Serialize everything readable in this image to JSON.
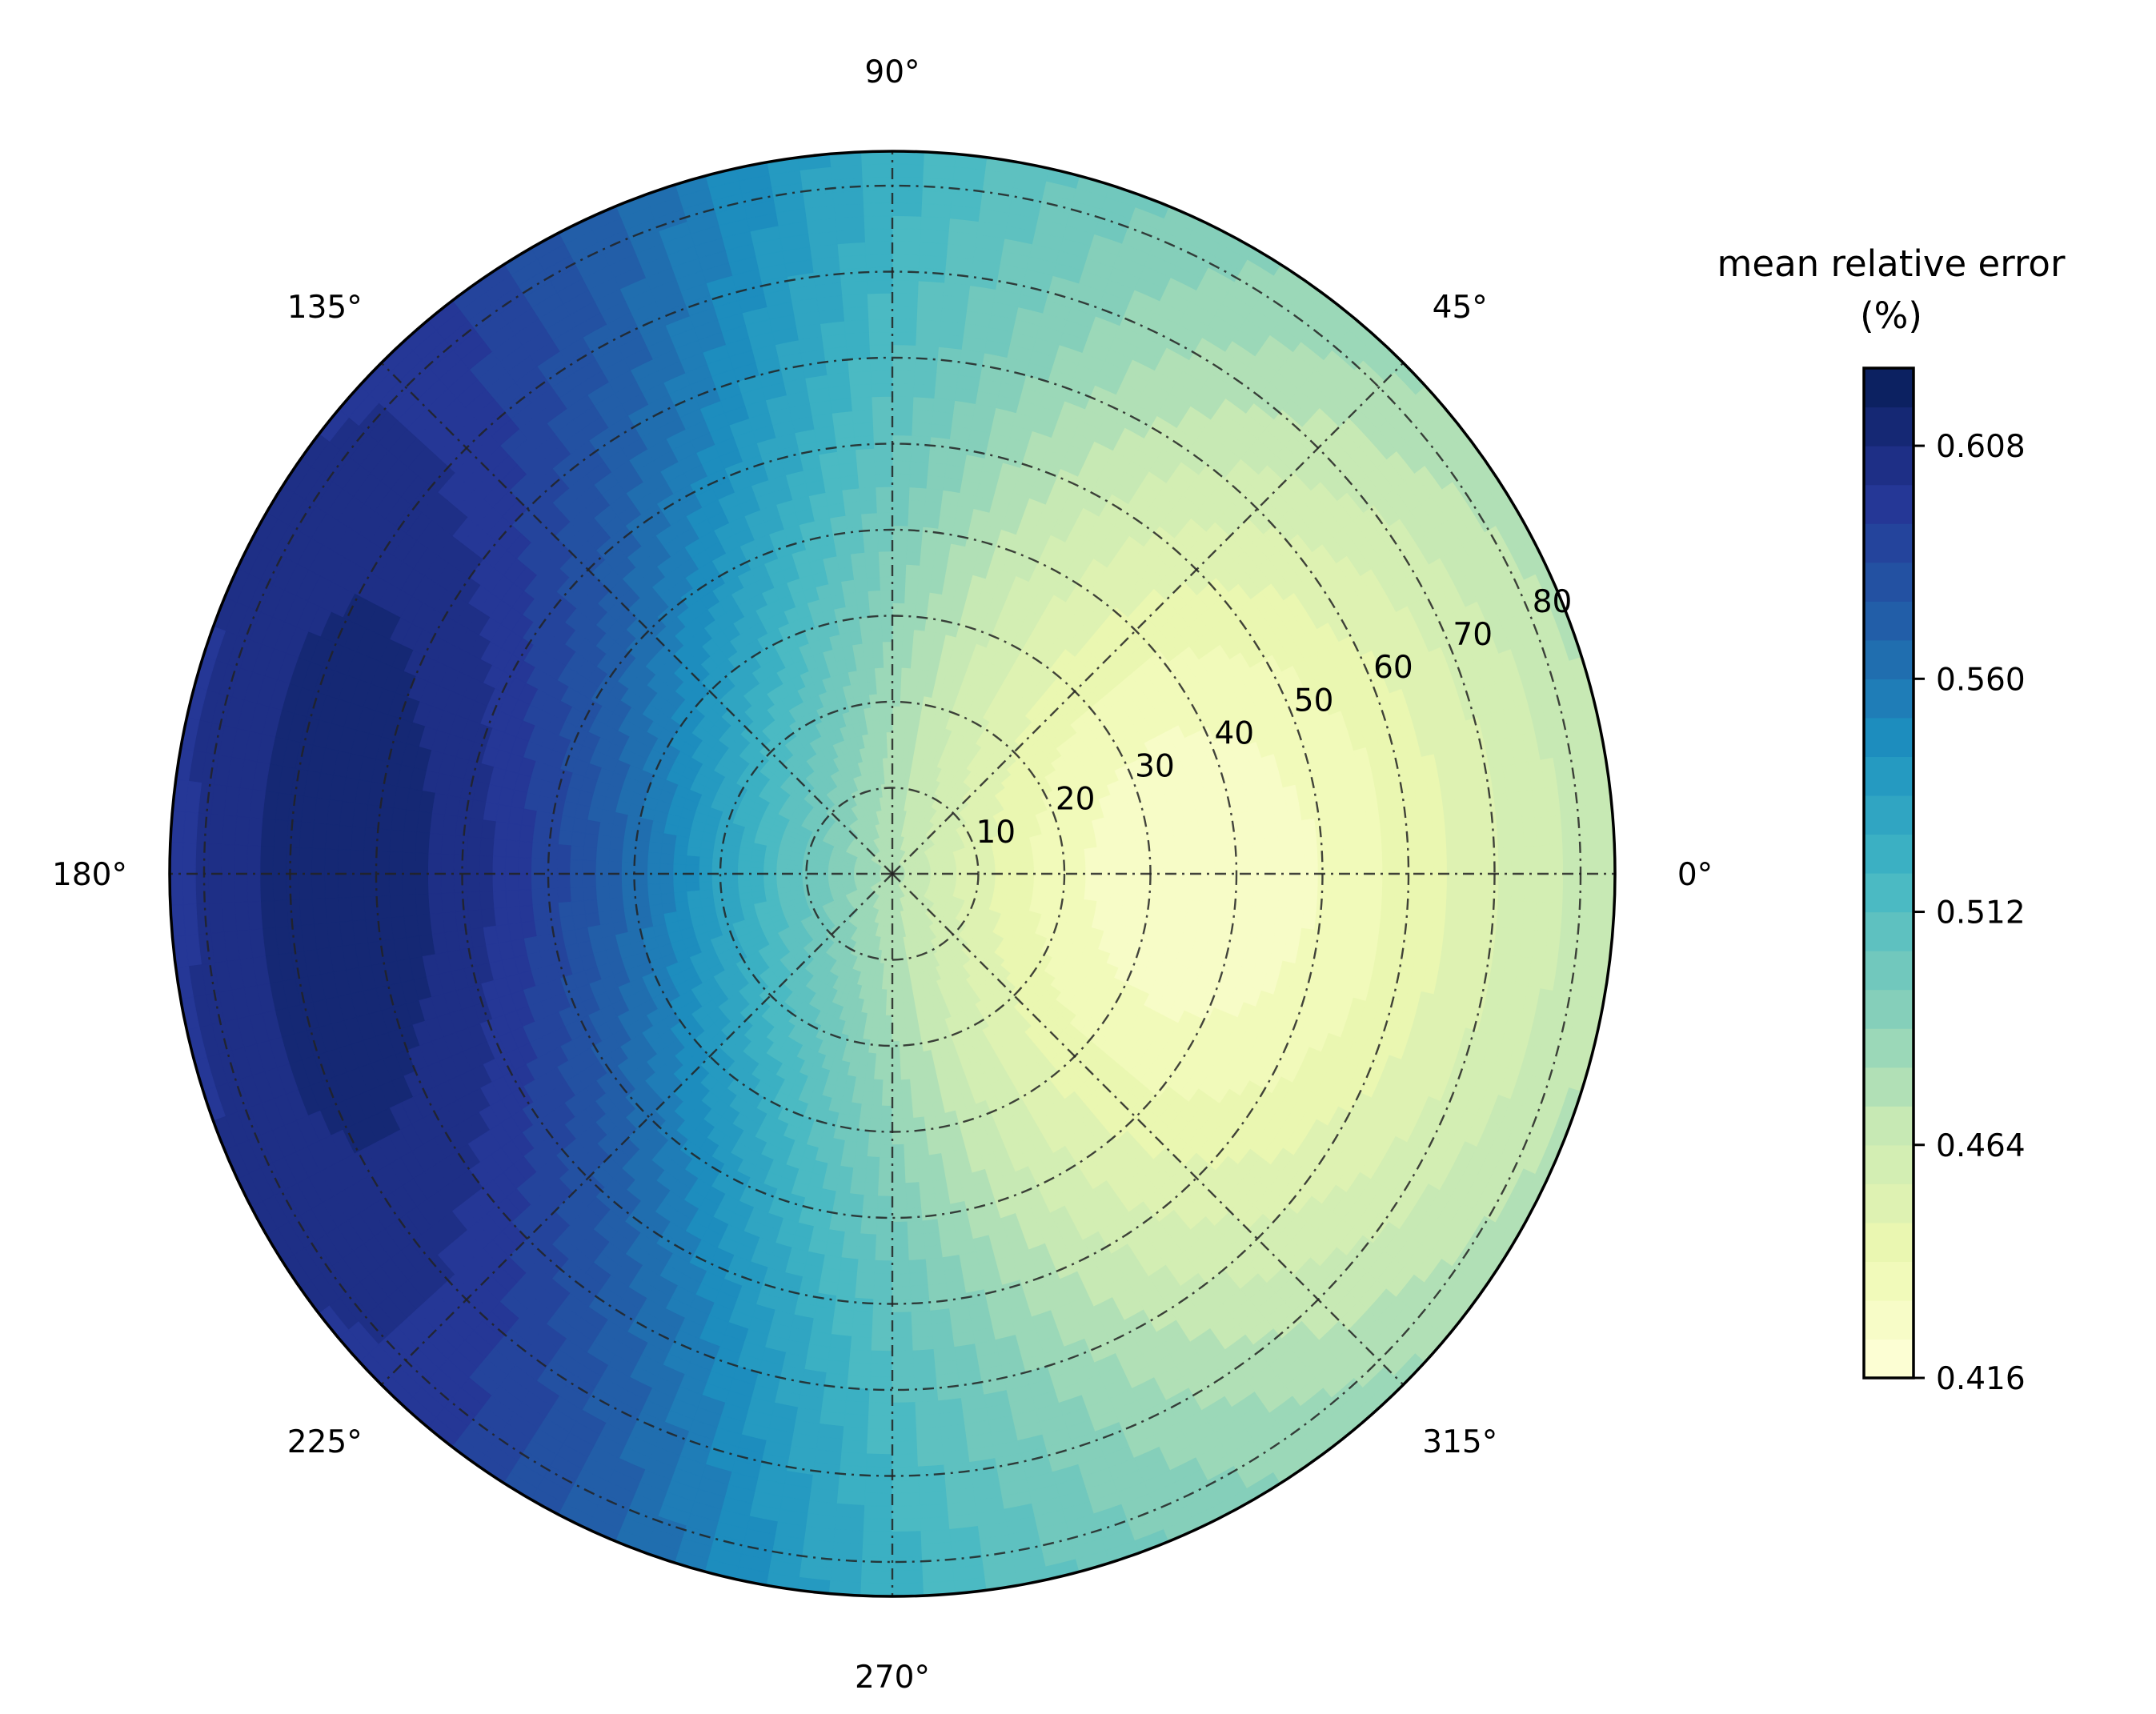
{
  "chart_data": {
    "type": "polar-contour",
    "title": "",
    "angle_ticks": [
      "0°",
      "45°",
      "90°",
      "135°",
      "180°",
      "225°",
      "270°",
      "315°"
    ],
    "radial_ticks": [
      "10",
      "20",
      "30",
      "40",
      "50",
      "60",
      "70",
      "80"
    ],
    "rlim": [
      0,
      84
    ],
    "grid": true,
    "grid_style": "dash-dot",
    "colormap": "YlGnBu",
    "colorbar": {
      "title_line1": "mean relative error",
      "title_line2": "(%)",
      "range": [
        0.416,
        0.624
      ],
      "tick_values": [
        0.416,
        0.464,
        0.512,
        0.56,
        0.608
      ],
      "tick_labels": [
        "0.416",
        "0.464",
        "0.512",
        "0.560",
        "0.608"
      ],
      "levels": 26
    },
    "field": {
      "description_values": {
        "min_value": 0.416,
        "min_location": {
          "angle_deg": 0,
          "radius": 25
        },
        "max_value": 0.62,
        "max_location": {
          "angle_deg": 180,
          "radius": 55
        },
        "value_at_center": 0.51,
        "value_at_rim_0deg": 0.43,
        "value_at_rim_90deg": 0.51,
        "value_at_rim_270deg": 0.51
      }
    },
    "colors": {
      "cmap_stops": [
        "#ffffd9",
        "#edf8b1",
        "#c7e9b4",
        "#7fcdbb",
        "#41b6c4",
        "#1d91c0",
        "#225ea8",
        "#253494",
        "#081d58"
      ],
      "grid": "#222222",
      "outline": "#000000"
    }
  }
}
